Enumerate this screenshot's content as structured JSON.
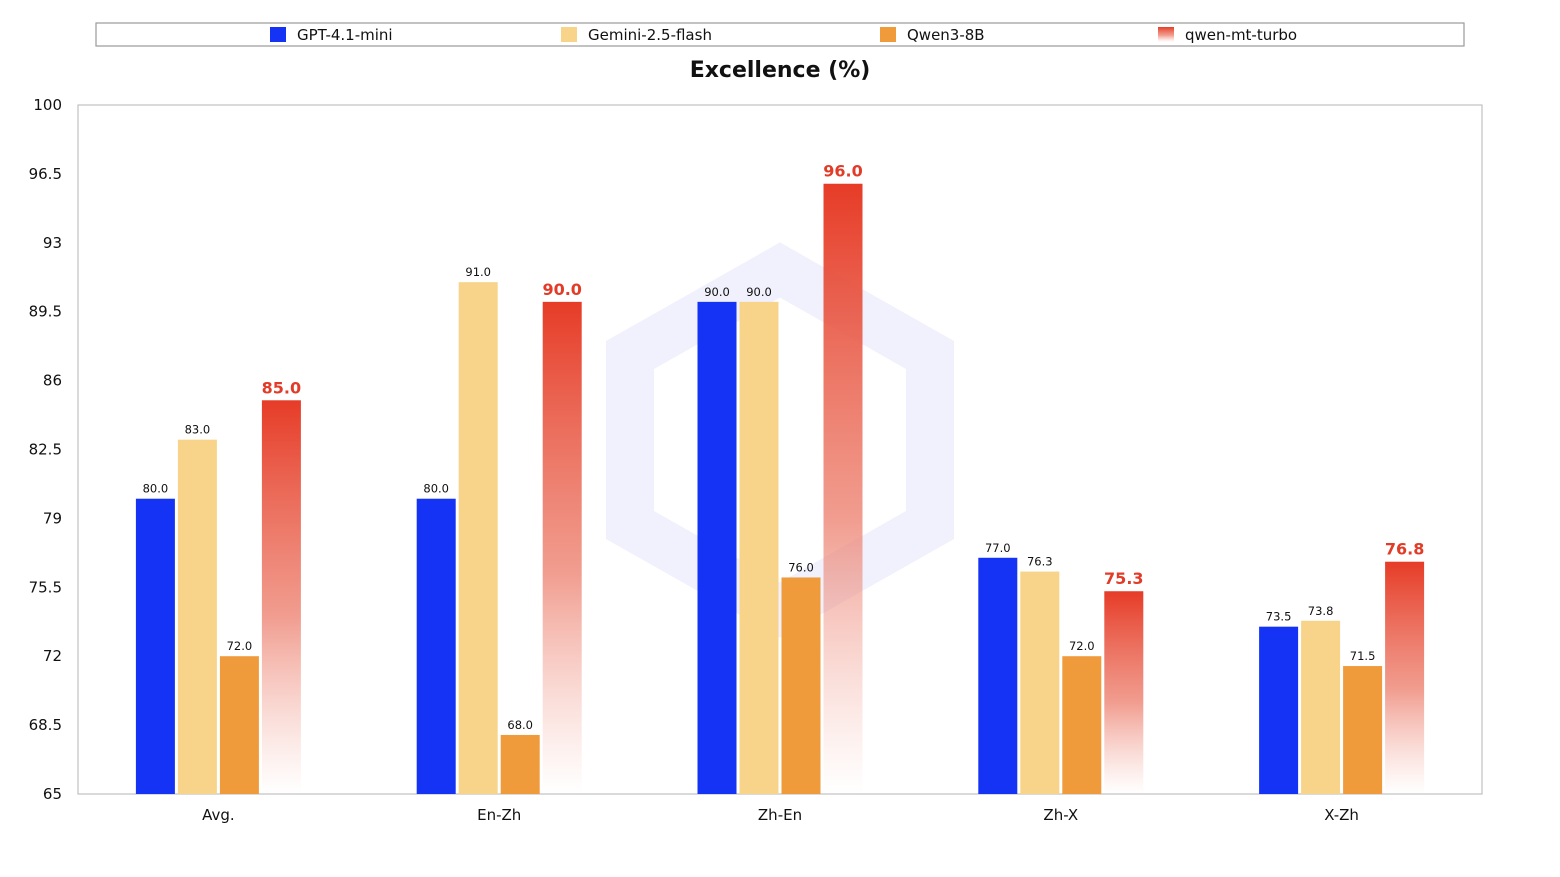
{
  "chart_data": {
    "type": "bar",
    "title": "Excellence (%)",
    "xlabel": "",
    "ylabel": "",
    "ylim": [
      65,
      100
    ],
    "yticks": [
      "65",
      "68.5",
      "72",
      "75.5",
      "79",
      "82.5",
      "86",
      "89.5",
      "93",
      "96.5",
      "100"
    ],
    "categories": [
      "Avg.",
      "En-Zh",
      "Zh-En",
      "Zh-X",
      "X-Zh"
    ],
    "legend_position": "top",
    "grid": false,
    "series": [
      {
        "name": "GPT-4.1-mini",
        "color": "#1433f5",
        "values": [
          80.0,
          80.0,
          90.0,
          77.0,
          73.5
        ],
        "labels": [
          "80.0",
          "80.0",
          "90.0",
          "77.0",
          "73.5"
        ],
        "highlight": false
      },
      {
        "name": "Gemini-2.5-flash",
        "color": "#f7d48a",
        "values": [
          83.0,
          91.0,
          90.0,
          76.3,
          73.8
        ],
        "labels": [
          "83.0",
          "91.0",
          "90.0",
          "76.3",
          "73.8"
        ],
        "highlight": false
      },
      {
        "name": "Qwen3-8B",
        "color": "#ef9b3b",
        "values": [
          72.0,
          68.0,
          76.0,
          72.0,
          71.5
        ],
        "labels": [
          "72.0",
          "68.0",
          "76.0",
          "72.0",
          "71.5"
        ],
        "highlight": false
      },
      {
        "name": "qwen-mt-turbo",
        "color": "#e63c27",
        "values": [
          85.0,
          90.0,
          96.0,
          75.3,
          76.8
        ],
        "labels": [
          "85.0",
          "90.0",
          "96.0",
          "75.3",
          "76.8"
        ],
        "highlight": true
      }
    ]
  }
}
